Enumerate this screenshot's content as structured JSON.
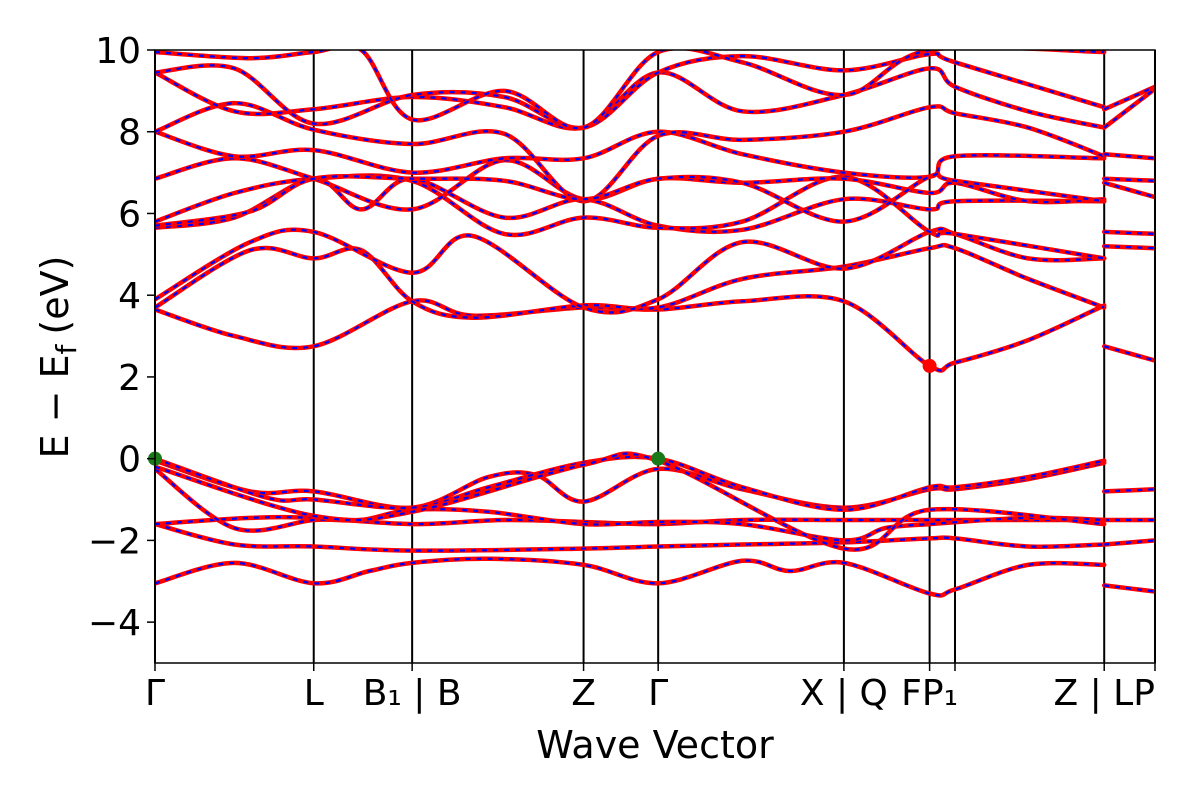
{
  "chart_data": {
    "type": "line",
    "title": "",
    "xlabel": "Wave Vector",
    "ylabel": "E − E_f (eV)",
    "ylabel_main": "E − E",
    "ylabel_sub": "f",
    "ylabel_unit": "(eV)",
    "ylim": [
      -5,
      10
    ],
    "yticks": [
      -4,
      -2,
      0,
      2,
      4,
      6,
      8,
      10
    ],
    "ytick_labels": [
      "−4",
      "−2",
      "0",
      "2",
      "4",
      "6",
      "8",
      "10"
    ],
    "xlim": [
      0,
      6.3
    ],
    "kpoints": [
      {
        "x": 0.0,
        "label": "Γ"
      },
      {
        "x": 1.0,
        "label": "L"
      },
      {
        "x": 1.62,
        "label": "B₁ | B"
      },
      {
        "x": 2.7,
        "label": "Z"
      },
      {
        "x": 3.17,
        "label": "Γ"
      },
      {
        "x": 4.34,
        "label": "X | Q"
      },
      {
        "x": 4.88,
        "label": "FP₁"
      },
      {
        "x": 5.04,
        "label": ""
      },
      {
        "x": 5.98,
        "label": "Z | LP"
      },
      {
        "x": 6.3,
        "label": ""
      }
    ],
    "series_colors": {
      "band": "#ff0000",
      "dash": "#0000ff"
    },
    "highlight_points": [
      {
        "x": 0.0,
        "y": 0.0,
        "color": "#1a7a1a"
      },
      {
        "x": 3.17,
        "y": 0.0,
        "color": "#1a7a1a"
      },
      {
        "x": 4.88,
        "y": 2.27,
        "color": "#ff0000"
      }
    ],
    "bands": [
      [
        [
          0,
          -3.05
        ],
        [
          0.5,
          -2.55
        ],
        [
          1.0,
          -3.05
        ],
        [
          1.35,
          -2.75
        ],
        [
          1.62,
          -2.55
        ],
        [
          2.1,
          -2.45
        ],
        [
          2.7,
          -2.6
        ],
        [
          3.17,
          -3.05
        ],
        [
          3.7,
          -2.5
        ],
        [
          4.0,
          -2.75
        ],
        [
          4.34,
          -2.55
        ],
        [
          4.88,
          -3.3
        ],
        [
          5.04,
          -3.2
        ],
        [
          5.5,
          -2.6
        ],
        [
          5.98,
          -2.6
        ]
      ],
      [
        [
          5.98,
          -3.1
        ],
        [
          6.3,
          -3.25
        ]
      ],
      [
        [
          0,
          -1.6
        ],
        [
          0.5,
          -2.1
        ],
        [
          1.0,
          -2.15
        ],
        [
          1.62,
          -2.25
        ],
        [
          2.7,
          -2.2
        ],
        [
          3.17,
          -2.15
        ],
        [
          3.7,
          -2.1
        ],
        [
          4.34,
          -2.05
        ],
        [
          4.88,
          -1.95
        ],
        [
          5.04,
          -1.95
        ],
        [
          5.5,
          -2.15
        ],
        [
          5.98,
          -2.1
        ]
      ],
      [
        [
          5.98,
          -2.1
        ],
        [
          6.3,
          -2.0
        ]
      ],
      [
        [
          0,
          -1.6
        ],
        [
          0.6,
          -1.45
        ],
        [
          1.0,
          -1.45
        ],
        [
          1.62,
          -1.6
        ],
        [
          2.2,
          -1.5
        ],
        [
          2.7,
          -1.55
        ],
        [
          3.17,
          -1.6
        ],
        [
          3.7,
          -1.5
        ],
        [
          4.34,
          -1.5
        ],
        [
          4.88,
          -1.5
        ],
        [
          5.5,
          -1.5
        ],
        [
          5.98,
          -1.5
        ]
      ],
      [
        [
          5.98,
          -1.5
        ],
        [
          6.3,
          -1.5
        ]
      ],
      [
        [
          0,
          -0.25
        ],
        [
          0.5,
          -1.7
        ],
        [
          1.0,
          -1.5
        ],
        [
          1.3,
          -1.5
        ],
        [
          1.62,
          -1.25
        ],
        [
          2.1,
          -1.3
        ],
        [
          2.7,
          -1.6
        ],
        [
          3.17,
          -1.55
        ],
        [
          3.7,
          -1.6
        ],
        [
          4.34,
          -2.0
        ],
        [
          4.6,
          -1.7
        ],
        [
          4.88,
          -1.6
        ],
        [
          5.5,
          -1.45
        ],
        [
          5.98,
          -1.5
        ]
      ],
      [
        [
          0,
          -0.05
        ],
        [
          0.6,
          -0.8
        ],
        [
          1.0,
          -0.8
        ],
        [
          1.62,
          -1.2
        ],
        [
          2.1,
          -0.45
        ],
        [
          2.4,
          -0.4
        ],
        [
          2.7,
          -1.05
        ],
        [
          3.17,
          -0.25
        ],
        [
          3.7,
          -0.75
        ],
        [
          4.34,
          -1.2
        ],
        [
          4.88,
          -0.75
        ],
        [
          5.04,
          -0.75
        ],
        [
          5.5,
          -0.5
        ],
        [
          5.98,
          -0.1
        ]
      ],
      [
        [
          0,
          0.0
        ],
        [
          0.7,
          -0.95
        ],
        [
          1.0,
          -1.0
        ],
        [
          1.62,
          -1.2
        ],
        [
          2.1,
          -0.7
        ],
        [
          2.7,
          -0.1
        ],
        [
          3.17,
          0.0
        ],
        [
          3.7,
          -0.7
        ],
        [
          4.34,
          -1.25
        ],
        [
          4.88,
          -0.7
        ],
        [
          5.04,
          -0.7
        ],
        [
          5.5,
          -0.45
        ],
        [
          5.98,
          -0.05
        ]
      ],
      [
        [
          5.98,
          -0.8
        ],
        [
          6.3,
          -0.75
        ]
      ],
      [
        [
          0,
          -0.2
        ],
        [
          1.0,
          -1.4
        ],
        [
          1.62,
          -1.3
        ],
        [
          2.7,
          -0.15
        ],
        [
          3.17,
          -0.05
        ],
        [
          4.34,
          -2.2
        ],
        [
          4.88,
          -1.25
        ],
        [
          5.98,
          -1.6
        ]
      ],
      [
        [
          0,
          3.65
        ],
        [
          0.5,
          3.0
        ],
        [
          1.0,
          2.75
        ],
        [
          1.62,
          3.85
        ],
        [
          2.0,
          3.5
        ],
        [
          2.7,
          3.7
        ],
        [
          3.17,
          3.65
        ],
        [
          3.7,
          3.85
        ],
        [
          4.34,
          3.85
        ],
        [
          4.88,
          2.27
        ],
        [
          5.04,
          2.35
        ],
        [
          5.5,
          2.9
        ],
        [
          5.98,
          3.75
        ]
      ],
      [
        [
          5.98,
          2.75
        ],
        [
          6.3,
          2.4
        ]
      ],
      [
        [
          0,
          3.7
        ],
        [
          0.6,
          5.1
        ],
        [
          1.0,
          4.9
        ],
        [
          1.3,
          5.1
        ],
        [
          1.62,
          3.85
        ],
        [
          2.0,
          3.45
        ],
        [
          2.7,
          3.75
        ],
        [
          3.17,
          3.7
        ],
        [
          3.7,
          4.4
        ],
        [
          4.34,
          4.7
        ],
        [
          4.88,
          5.15
        ],
        [
          5.04,
          5.15
        ],
        [
          5.5,
          4.4
        ],
        [
          5.98,
          3.7
        ]
      ],
      [
        [
          0,
          3.9
        ],
        [
          0.6,
          5.3
        ],
        [
          1.0,
          5.55
        ],
        [
          1.62,
          4.55
        ],
        [
          2.0,
          5.45
        ],
        [
          2.7,
          3.7
        ],
        [
          3.17,
          3.9
        ],
        [
          3.7,
          5.3
        ],
        [
          4.34,
          4.65
        ],
        [
          4.88,
          5.55
        ],
        [
          5.04,
          5.5
        ],
        [
          5.5,
          4.9
        ],
        [
          5.98,
          4.9
        ]
      ],
      [
        [
          5.98,
          5.55
        ],
        [
          6.3,
          5.5
        ]
      ],
      [
        [
          0,
          5.65
        ],
        [
          0.5,
          5.9
        ],
        [
          1.0,
          6.85
        ],
        [
          1.3,
          6.1
        ],
        [
          1.62,
          6.85
        ],
        [
          2.2,
          5.9
        ],
        [
          2.7,
          6.35
        ],
        [
          3.17,
          5.7
        ],
        [
          3.7,
          5.6
        ],
        [
          4.34,
          6.35
        ],
        [
          4.88,
          6.1
        ],
        [
          5.04,
          6.3
        ],
        [
          5.98,
          6.3
        ]
      ],
      [
        [
          0,
          5.8
        ],
        [
          0.5,
          6.5
        ],
        [
          1.0,
          6.85
        ],
        [
          1.62,
          6.8
        ],
        [
          2.2,
          5.5
        ],
        [
          2.7,
          5.9
        ],
        [
          3.17,
          5.65
        ],
        [
          3.7,
          5.8
        ],
        [
          4.34,
          6.9
        ],
        [
          4.88,
          5.55
        ],
        [
          5.04,
          5.5
        ],
        [
          5.98,
          4.9
        ]
      ],
      [
        [
          5.98,
          5.2
        ],
        [
          6.3,
          5.15
        ]
      ],
      [
        [
          0,
          6.85
        ],
        [
          0.5,
          7.35
        ],
        [
          1.0,
          6.85
        ],
        [
          1.62,
          6.1
        ],
        [
          2.2,
          7.3
        ],
        [
          2.7,
          6.35
        ],
        [
          3.17,
          6.85
        ],
        [
          3.7,
          6.75
        ],
        [
          4.34,
          6.85
        ],
        [
          4.88,
          6.5
        ],
        [
          5.04,
          6.75
        ],
        [
          5.5,
          6.3
        ],
        [
          5.98,
          6.35
        ]
      ],
      [
        [
          5.98,
          6.75
        ],
        [
          6.3,
          6.4
        ]
      ],
      [
        [
          0,
          8.0
        ],
        [
          0.5,
          7.4
        ],
        [
          1.0,
          7.55
        ],
        [
          1.62,
          7.0
        ],
        [
          2.2,
          7.35
        ],
        [
          2.7,
          7.35
        ],
        [
          3.17,
          8.0
        ],
        [
          3.7,
          7.45
        ],
        [
          4.34,
          7.0
        ],
        [
          4.88,
          6.9
        ],
        [
          5.04,
          7.4
        ],
        [
          5.98,
          7.35
        ]
      ],
      [
        [
          5.98,
          6.85
        ],
        [
          6.3,
          6.8
        ]
      ],
      [
        [
          0,
          8.0
        ],
        [
          0.5,
          8.7
        ],
        [
          1.0,
          8.05
        ],
        [
          1.62,
          7.7
        ],
        [
          2.2,
          7.95
        ],
        [
          2.7,
          6.3
        ],
        [
          3.17,
          7.9
        ],
        [
          3.7,
          7.8
        ],
        [
          4.34,
          8.0
        ],
        [
          4.88,
          8.6
        ],
        [
          5.04,
          8.45
        ],
        [
          5.5,
          8.1
        ],
        [
          5.98,
          7.4
        ]
      ],
      [
        [
          5.98,
          7.45
        ],
        [
          6.3,
          7.35
        ]
      ],
      [
        [
          0,
          9.45
        ],
        [
          0.5,
          8.5
        ],
        [
          1.0,
          8.55
        ],
        [
          1.62,
          8.85
        ],
        [
          2.2,
          8.6
        ],
        [
          2.7,
          8.1
        ],
        [
          3.17,
          9.45
        ],
        [
          3.7,
          8.5
        ],
        [
          4.34,
          8.9
        ],
        [
          4.88,
          9.55
        ],
        [
          5.04,
          9.1
        ],
        [
          5.5,
          8.5
        ],
        [
          5.98,
          8.1
        ]
      ],
      [
        [
          5.98,
          8.1
        ],
        [
          6.3,
          9.05
        ]
      ],
      [
        [
          0,
          9.45
        ],
        [
          0.5,
          9.55
        ],
        [
          1.0,
          8.2
        ],
        [
          1.62,
          8.9
        ],
        [
          2.2,
          8.85
        ],
        [
          2.7,
          8.1
        ],
        [
          3.17,
          9.45
        ],
        [
          3.7,
          9.85
        ],
        [
          4.34,
          9.5
        ],
        [
          4.88,
          9.9
        ],
        [
          5.04,
          9.7
        ],
        [
          5.98,
          8.6
        ]
      ],
      [
        [
          5.98,
          8.55
        ],
        [
          6.3,
          9.1
        ]
      ],
      [
        [
          0,
          9.95
        ],
        [
          0.6,
          9.8
        ],
        [
          1.0,
          9.95
        ],
        [
          1.3,
          10.0
        ],
        [
          1.62,
          8.3
        ],
        [
          2.2,
          9.0
        ],
        [
          2.7,
          8.1
        ],
        [
          3.17,
          9.95
        ],
        [
          3.7,
          9.7
        ],
        [
          4.34,
          8.9
        ],
        [
          4.88,
          10.0
        ],
        [
          5.98,
          9.95
        ]
      ],
      [
        [
          0,
          5.7
        ],
        [
          0.6,
          6.05
        ],
        [
          1.0,
          6.85
        ],
        [
          1.62,
          6.85
        ],
        [
          2.2,
          6.8
        ],
        [
          2.7,
          6.35
        ],
        [
          3.17,
          6.85
        ],
        [
          3.7,
          6.75
        ],
        [
          4.34,
          5.8
        ],
        [
          4.88,
          6.9
        ],
        [
          5.04,
          6.8
        ],
        [
          5.98,
          6.3
        ]
      ]
    ]
  }
}
